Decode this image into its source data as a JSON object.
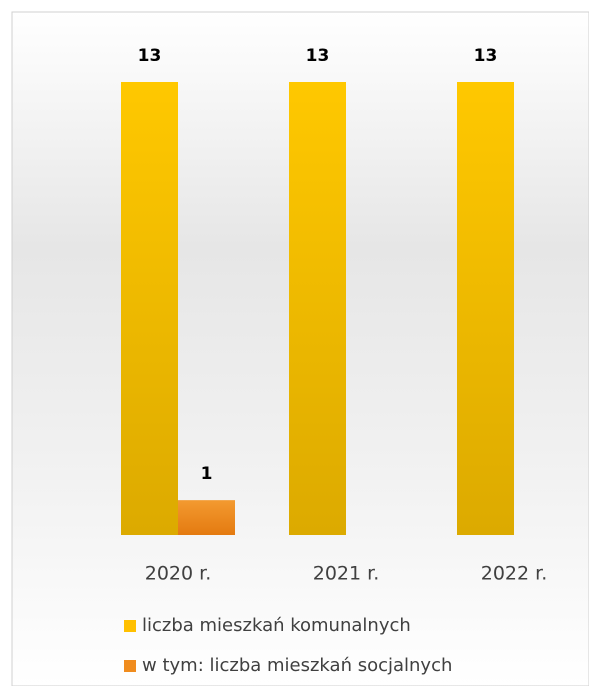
{
  "chart_data": {
    "type": "bar",
    "categories": [
      "2020 r.",
      "2021 r.",
      "2022 r."
    ],
    "series": [
      {
        "name": "liczba mieszkań komunalnych",
        "color": "#ffc000",
        "values": [
          13,
          13,
          13
        ]
      },
      {
        "name": "w tym: liczba mieszkań socjalnych",
        "color": "#f08c1e",
        "values": [
          1,
          null,
          null
        ]
      }
    ],
    "legend": "bottom"
  }
}
